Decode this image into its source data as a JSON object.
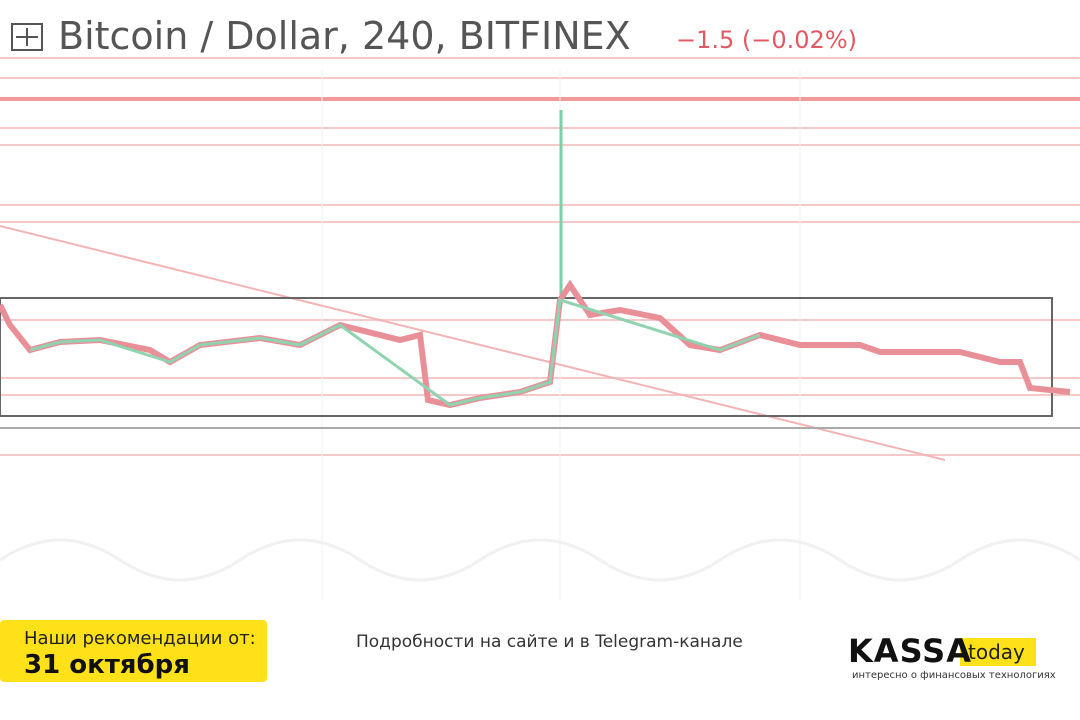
{
  "header": {
    "title": "Bitcoin / Dollar, 240, BITFINEX",
    "change": "−1.5 (−0.02%)"
  },
  "footer": {
    "badge_label": "Наши рекомендации от:",
    "badge_date": "31 октября",
    "note": "Подробности на сайте и в Telegram-канале",
    "logo_main": "KASSA",
    "logo_tag": "today",
    "logo_caption": "интересно о финансовых технологиях"
  }
}
